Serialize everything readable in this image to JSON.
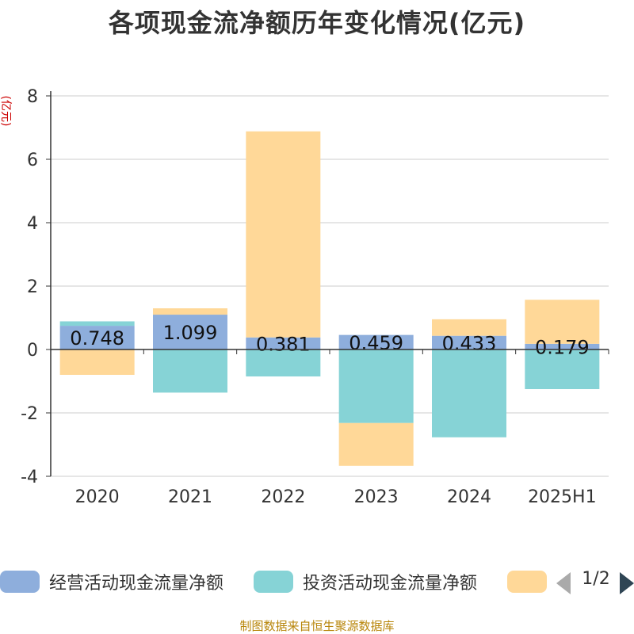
{
  "title": "各项现金流净额历年变化情况(亿元)",
  "unit_label": "(亿元)",
  "source_note": "制图数据来自恒生聚源数据库",
  "pager": {
    "text": "1/2"
  },
  "chart_data": {
    "type": "bar",
    "stacked": true,
    "categories": [
      "2020",
      "2021",
      "2022",
      "2023",
      "2024",
      "2025H1"
    ],
    "ylim": [
      -4,
      8
    ],
    "yticks": [
      -4,
      -2,
      0,
      2,
      4,
      6,
      8
    ],
    "grid": true,
    "legend_position": "bottom",
    "series": [
      {
        "name": "经营活动现金流量净额",
        "color": "#8eaedc",
        "values": [
          0.748,
          1.099,
          0.381,
          0.459,
          0.433,
          0.179
        ],
        "labels": [
          "0.748",
          "1.099",
          "0.381",
          "0.459",
          "0.433",
          "0.179"
        ]
      },
      {
        "name": "投资活动现金流量净额",
        "color": "#86d3d6",
        "values": [
          0.14,
          -1.36,
          -0.85,
          -2.32,
          -2.77,
          -1.25
        ]
      },
      {
        "name": "",
        "color": "#ffd898",
        "values": [
          -0.8,
          0.2,
          6.5,
          -1.35,
          0.52,
          1.39
        ]
      }
    ]
  }
}
